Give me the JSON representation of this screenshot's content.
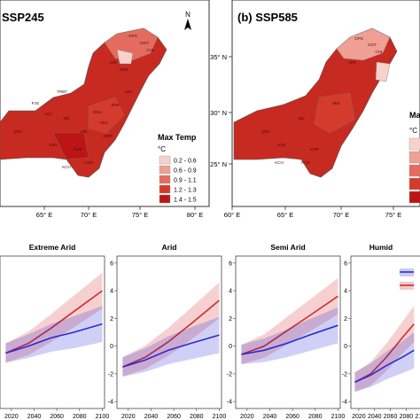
{
  "maps": [
    {
      "title": "SSP245",
      "north_label": "N",
      "x_ticks": [
        "65° E",
        "70° E",
        "75° E",
        "80° E"
      ],
      "y_ticks": [],
      "legend": {
        "title": "Max Temp",
        "unit": "°C",
        "classes": [
          {
            "label": "0.2 - 0.6",
            "color": "#f7d1cb"
          },
          {
            "label": "0.6 - 0.9",
            "color": "#ef9f94"
          },
          {
            "label": "0.9 - 1.1",
            "color": "#e46c5e"
          },
          {
            "label": "1.2 - 1.3",
            "color": "#d53b2c"
          },
          {
            "label": "1.4 - 1.5",
            "color": "#bd1515"
          }
        ]
      },
      "region_labels": [
        "GPS",
        "GGT",
        "CHL",
        "DIR",
        "SWT",
        "KLT",
        "QTA",
        "PJG",
        "TRBT",
        "SBI",
        "KZD",
        "LBL",
        "KHP",
        "DDU",
        "MUL",
        "BWP",
        "HYD",
        "KCH",
        "SKR",
        "LRK"
      ]
    },
    {
      "title": "(b) SSP585",
      "north_label": "",
      "x_ticks": [
        "60° E",
        "65° E",
        "70° E",
        "75° E"
      ],
      "y_ticks": [
        "35° N",
        "30° N",
        "25° N"
      ],
      "legend": {
        "title": "Max",
        "unit": "°C",
        "classes": [
          {
            "label": "",
            "color": "#f7d1cb"
          },
          {
            "label": "",
            "color": "#ef9f94"
          },
          {
            "label": "",
            "color": "#e46c5e"
          },
          {
            "label": "",
            "color": "#d53b2c"
          },
          {
            "label": "",
            "color": "#bd1515"
          }
        ]
      },
      "region_labels": [
        "GPS",
        "GGT",
        "CHL",
        "DIR",
        "QTA",
        "SBI",
        "KZD",
        "KHP",
        "MUL",
        "HYD",
        "KCH"
      ]
    }
  ],
  "chart_data": {
    "type": "line",
    "x_ticks": [
      2020,
      2040,
      2060,
      2080,
      2100
    ],
    "y_ticks": [
      -4,
      -2,
      0,
      2,
      4,
      6
    ],
    "ylim": [
      -4.5,
      6.5
    ],
    "xlim": [
      2010,
      2102
    ],
    "series_colors": {
      "ssp585": "#d42a2a",
      "ssp245": "#2a2ad4"
    },
    "panels": [
      {
        "title": "Extreme Arid",
        "y_axis_visible": false,
        "ssp585": {
          "x": [
            2015,
            2035,
            2055,
            2075,
            2100
          ],
          "y": [
            -0.5,
            0.2,
            1.3,
            2.5,
            4.0
          ]
        },
        "ssp245": {
          "x": [
            2015,
            2035,
            2055,
            2075,
            2100
          ],
          "y": [
            -0.5,
            0.0,
            0.6,
            1.0,
            1.6
          ]
        }
      },
      {
        "title": "Arid",
        "y_axis_visible": true,
        "ssp585": {
          "x": [
            2015,
            2035,
            2055,
            2075,
            2100
          ],
          "y": [
            -1.5,
            -0.8,
            0.3,
            1.6,
            3.3
          ]
        },
        "ssp245": {
          "x": [
            2015,
            2035,
            2055,
            2075,
            2100
          ],
          "y": [
            -1.5,
            -1.0,
            -0.3,
            0.2,
            0.8
          ]
        }
      },
      {
        "title": "Semi Arid",
        "y_axis_visible": true,
        "ssp585": {
          "x": [
            2015,
            2035,
            2055,
            2075,
            2100
          ],
          "y": [
            -0.6,
            0.0,
            1.1,
            2.2,
            3.6
          ]
        },
        "ssp245": {
          "x": [
            2015,
            2035,
            2055,
            2075,
            2100
          ],
          "y": [
            -0.6,
            -0.3,
            0.2,
            0.8,
            1.5
          ]
        }
      },
      {
        "title": "Humid",
        "y_axis_visible": true,
        "ssp585": {
          "x": [
            2015,
            2035,
            2055,
            2075,
            2090
          ],
          "y": [
            -2.6,
            -2.0,
            -0.8,
            0.6,
            1.6
          ]
        },
        "ssp245": {
          "x": [
            2015,
            2035,
            2055,
            2075,
            2090
          ],
          "y": [
            -2.6,
            -2.1,
            -1.4,
            -0.8,
            -0.3
          ]
        }
      }
    ],
    "legend_entries": [
      {
        "label": "",
        "color": "#2a2ad4"
      },
      {
        "label": "",
        "color": "#d42a2a"
      }
    ]
  }
}
